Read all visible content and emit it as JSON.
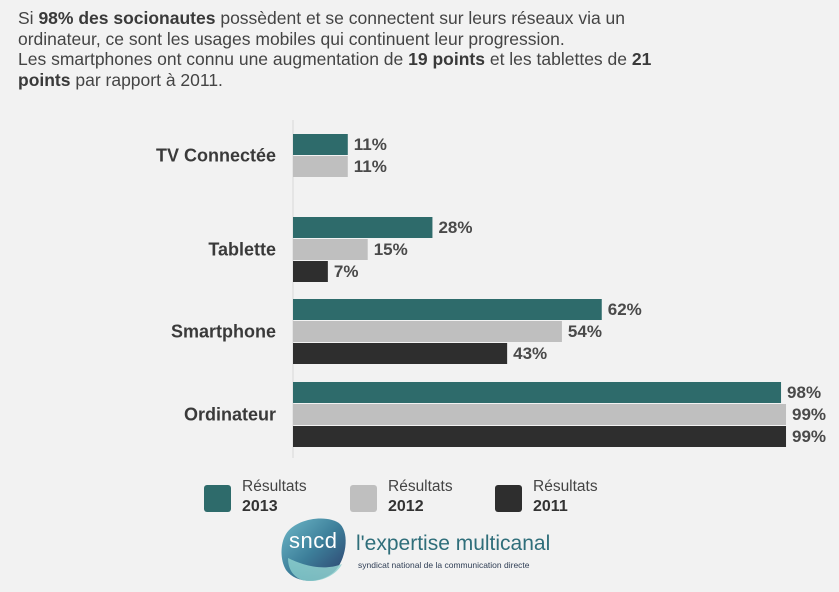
{
  "intro": {
    "line1_pre": "Si ",
    "line1_bold": "98% des socionautes",
    "line1_post": " possèdent et se connectent sur leurs réseaux via un",
    "line2": "ordinateur, ce sont les usages mobiles qui continuent leur progression.",
    "line3_pre": "Les smartphones ont connu une augmentation de ",
    "line3_bold1": "19 points",
    "line3_mid": " et les tablettes de ",
    "line3_bold2": "21",
    "line4_bold": "points",
    "line4_post": " par rapport à 2011."
  },
  "chart_data": {
    "type": "bar",
    "orientation": "horizontal",
    "categories": [
      "TV Connectée",
      "Tablette",
      "Smartphone",
      "Ordinateur"
    ],
    "series": [
      {
        "name": "Résultats 2013",
        "values": [
          11,
          28,
          62,
          98
        ],
        "color": "#2e6b6b"
      },
      {
        "name": "Résultats 2012",
        "values": [
          11,
          15,
          54,
          99
        ],
        "color": "#bfbfbf"
      },
      {
        "name": "Résultats 2011",
        "values": [
          null,
          7,
          43,
          99
        ],
        "color": "#2e2e2e"
      }
    ],
    "value_suffix": "%",
    "xlim": [
      0,
      100
    ],
    "grid": false,
    "legend_position": "bottom"
  },
  "legend": [
    {
      "line1": "Résultats",
      "line2": "2013",
      "color": "#2e6b6b"
    },
    {
      "line1": "Résultats",
      "line2": "2012",
      "color": "#bfbfbf"
    },
    {
      "line1": "Résultats",
      "line2": "2011",
      "color": "#2e2e2e"
    }
  ],
  "logo": {
    "mark": "sncd",
    "tagline": "l'expertise multicanal",
    "subtitle": "syndicat national de la communication directe"
  }
}
